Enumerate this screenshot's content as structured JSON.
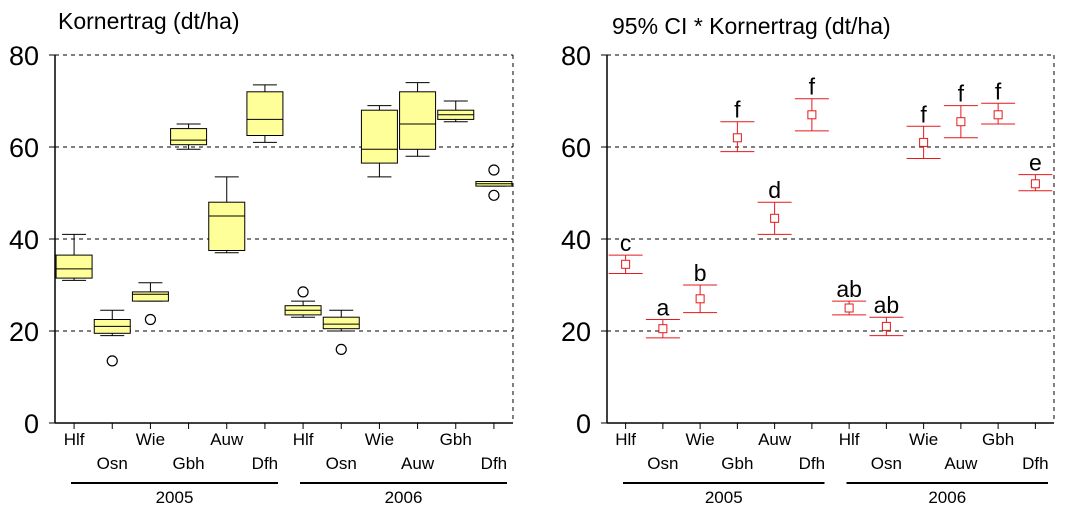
{
  "chart_data": [
    {
      "type": "box",
      "title": "Kornertrag (dt/ha)",
      "ylim": [
        0,
        80
      ],
      "yticks": [
        "0",
        "20",
        "40",
        "60",
        "80"
      ],
      "grid": "horizontal dashed at 20, 40, 60",
      "box_color": "#FFFF99",
      "categories": [
        "Hlf",
        "Osn",
        "Wie",
        "Gbh",
        "Auw",
        "Dfh",
        "Hlf",
        "Osn",
        "Wie",
        "Auw",
        "Gbh",
        "Dfh"
      ],
      "years": [
        {
          "label": "2005",
          "count": 6
        },
        {
          "label": "2006",
          "count": 6
        }
      ],
      "boxes": [
        {
          "min": 31,
          "q1": 31.5,
          "median": 33.5,
          "q3": 36.5,
          "max": 41,
          "outliers": []
        },
        {
          "min": 19,
          "q1": 19.5,
          "median": 21,
          "q3": 22.5,
          "max": 24.5,
          "outliers": [
            13.5
          ]
        },
        {
          "min": 26.5,
          "q1": 26.5,
          "median": 28,
          "q3": 28.5,
          "max": 30.5,
          "outliers": [
            22.5
          ]
        },
        {
          "min": 59.5,
          "q1": 60.5,
          "median": 61.5,
          "q3": 64,
          "max": 65,
          "outliers": []
        },
        {
          "min": 37,
          "q1": 37.5,
          "median": 45,
          "q3": 48,
          "max": 53.5,
          "outliers": []
        },
        {
          "min": 61,
          "q1": 62.5,
          "median": 66,
          "q3": 72,
          "max": 73.5,
          "outliers": []
        },
        {
          "min": 23,
          "q1": 23.5,
          "median": 24.5,
          "q3": 25.5,
          "max": 26.5,
          "outliers": [
            28.5
          ]
        },
        {
          "min": 20,
          "q1": 20.5,
          "median": 21.5,
          "q3": 23,
          "max": 24.5,
          "outliers": [
            16
          ]
        },
        {
          "min": 53.5,
          "q1": 56.5,
          "median": 59.5,
          "q3": 68,
          "max": 69,
          "outliers": []
        },
        {
          "min": 58,
          "q1": 59.5,
          "median": 65,
          "q3": 72,
          "max": 74,
          "outliers": []
        },
        {
          "min": 65.5,
          "q1": 66,
          "median": 67,
          "q3": 68,
          "max": 70,
          "outliers": []
        },
        {
          "min": 51.5,
          "q1": 51.5,
          "median": 52,
          "q3": 52.5,
          "max": 52.5,
          "outliers": [
            55,
            49.5
          ]
        }
      ]
    },
    {
      "type": "errorbar",
      "title": "95% CI * Kornertrag (dt/ha)",
      "ylim": [
        0,
        80
      ],
      "yticks": [
        "0",
        "20",
        "40",
        "60",
        "80"
      ],
      "grid": "horizontal dashed at 20, 40, 60",
      "marker_color": "#E41A1C",
      "categories": [
        "Hlf",
        "Osn",
        "Wie",
        "Gbh",
        "Auw",
        "Dfh",
        "Hlf",
        "Osn",
        "Wie",
        "Auw",
        "Gbh",
        "Dfh"
      ],
      "years": [
        {
          "label": "2005",
          "count": 6
        },
        {
          "label": "2006",
          "count": 6
        }
      ],
      "points": [
        {
          "mean": 34.5,
          "lower": 32.5,
          "upper": 36.5,
          "letter": "c"
        },
        {
          "mean": 20.5,
          "lower": 18.5,
          "upper": 22.5,
          "letter": "a"
        },
        {
          "mean": 27,
          "lower": 24,
          "upper": 30,
          "letter": "b"
        },
        {
          "mean": 62,
          "lower": 59,
          "upper": 65.5,
          "letter": "f"
        },
        {
          "mean": 44.5,
          "lower": 41,
          "upper": 48,
          "letter": "d"
        },
        {
          "mean": 67,
          "lower": 63.5,
          "upper": 70.5,
          "letter": "f"
        },
        {
          "mean": 25,
          "lower": 23.5,
          "upper": 26.5,
          "letter": "ab"
        },
        {
          "mean": 21,
          "lower": 19,
          "upper": 23,
          "letter": "ab"
        },
        {
          "mean": 61,
          "lower": 57.5,
          "upper": 64.5,
          "letter": "f"
        },
        {
          "mean": 65.5,
          "lower": 62,
          "upper": 69,
          "letter": "f"
        },
        {
          "mean": 67,
          "lower": 65,
          "upper": 69.5,
          "letter": "f"
        },
        {
          "mean": 52,
          "lower": 50.5,
          "upper": 54,
          "letter": "e"
        }
      ]
    }
  ]
}
